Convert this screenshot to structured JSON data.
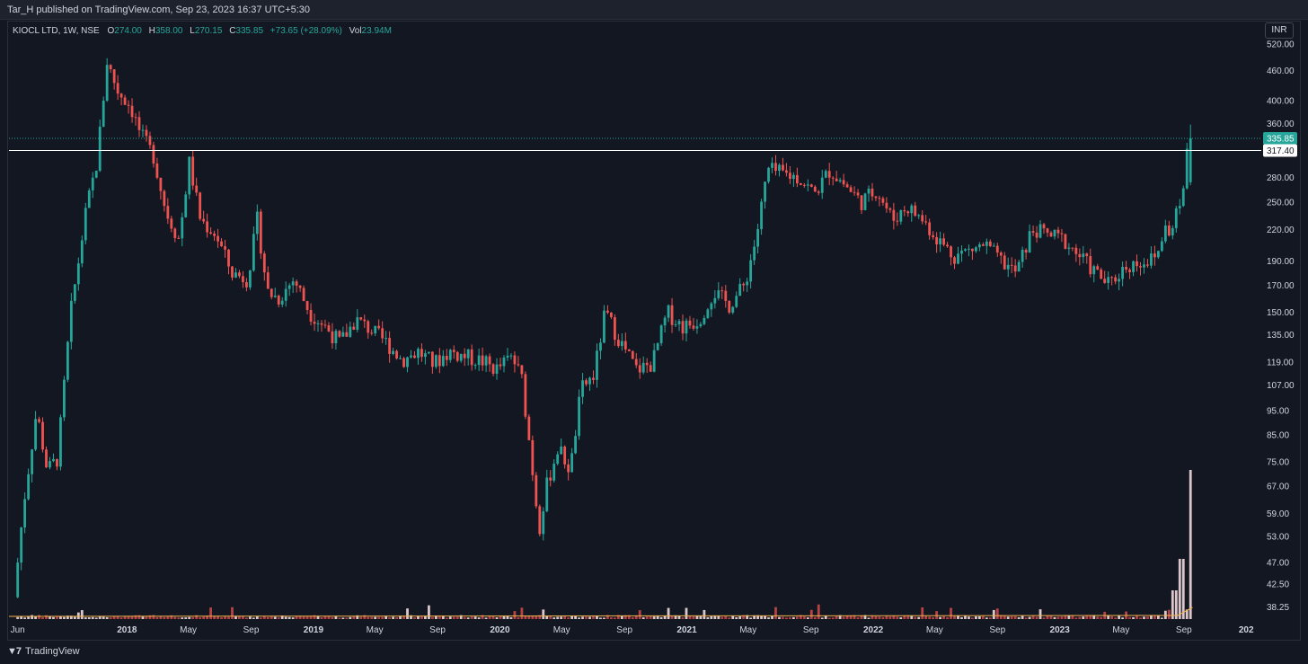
{
  "header": {
    "published_text": "Tar_H published on TradingView.com, Sep 23, 2023 16:37 UTC+5:30"
  },
  "legend": {
    "symbol": "KIOCL LTD, 1W, NSE",
    "open_label": "O",
    "open": "274.00",
    "high_label": "H",
    "high": "358.00",
    "low_label": "L",
    "low": "270.15",
    "close_label": "C",
    "close": "335.85",
    "change": "+73.65 (+28.09%)",
    "volume_label": "Vol",
    "volume": "23.94M"
  },
  "currency_button": "INR",
  "footer": {
    "brand": "TradingView",
    "logo_icon": "tradingview-logo-icon"
  },
  "colors": {
    "background": "#131722",
    "up": "#26a69a",
    "down": "#ef5350",
    "axis_text": "#d1d4dc",
    "last_price_badge": "#26a69a",
    "level_badge": "#ffffff"
  },
  "chart_data": {
    "type": "candlestick",
    "title": "",
    "scale": "log",
    "grid": false,
    "price_axis_ticks": [
      38.25,
      42.5,
      47,
      53,
      59,
      67,
      75,
      85,
      95,
      107,
      119,
      135,
      150,
      170,
      190,
      220,
      250,
      280,
      360,
      400,
      460,
      520
    ],
    "price_axis_labels": [
      "38.25",
      "42.50",
      "47.00",
      "53.00",
      "59.00",
      "67.00",
      "75.00",
      "85.00",
      "95.00",
      "107.00",
      "119.00",
      "135.00",
      "150.00",
      "170.00",
      "190.00",
      "220.00",
      "250.00",
      "280.00",
      "360.00",
      "400.00",
      "460.00",
      "520.00"
    ],
    "time_axis_labels": [
      "Jun",
      "2018",
      "May",
      "Sep",
      "2019",
      "May",
      "Sep",
      "2020",
      "May",
      "Sep",
      "2021",
      "May",
      "Sep",
      "2022",
      "May",
      "Sep",
      "2023",
      "May",
      "Sep",
      "202"
    ],
    "time_axis_bold": [
      "2018",
      "2019",
      "2020",
      "2021",
      "2022",
      "2023",
      "202"
    ],
    "last_price": {
      "value": 335.85,
      "label": "335.85"
    },
    "horizontal_level": {
      "value": 317.4,
      "label": "317.40"
    },
    "price_path": [
      [
        "2017-06-01",
        40
      ],
      [
        "2017-06-20",
        62
      ],
      [
        "2017-07-15",
        95
      ],
      [
        "2017-08-05",
        72
      ],
      [
        "2017-08-25",
        76
      ],
      [
        "2017-09-20",
        150
      ],
      [
        "2017-10-20",
        240
      ],
      [
        "2017-11-10",
        300
      ],
      [
        "2017-11-30",
        480
      ],
      [
        "2017-12-20",
        420
      ],
      [
        "2018-01-15",
        390
      ],
      [
        "2018-02-05",
        340
      ],
      [
        "2018-03-01",
        310
      ],
      [
        "2018-03-25",
        240
      ],
      [
        "2018-04-20",
        210
      ],
      [
        "2018-05-10",
        300
      ],
      [
        "2018-06-01",
        230
      ],
      [
        "2018-07-01",
        215
      ],
      [
        "2018-08-01",
        180
      ],
      [
        "2018-09-01",
        175
      ],
      [
        "2018-09-20",
        230
      ],
      [
        "2018-10-10",
        165
      ],
      [
        "2018-11-01",
        160
      ],
      [
        "2018-12-01",
        175
      ],
      [
        "2019-01-01",
        150
      ],
      [
        "2019-02-01",
        140
      ],
      [
        "2019-03-01",
        130
      ],
      [
        "2019-04-01",
        145
      ],
      [
        "2019-05-01",
        138
      ],
      [
        "2019-06-01",
        130
      ],
      [
        "2019-07-01",
        120
      ],
      [
        "2019-08-01",
        125
      ],
      [
        "2019-09-01",
        118
      ],
      [
        "2019-10-01",
        125
      ],
      [
        "2019-11-01",
        122
      ],
      [
        "2019-12-01",
        120
      ],
      [
        "2020-01-01",
        115
      ],
      [
        "2020-02-01",
        122
      ],
      [
        "2020-02-20",
        110
      ],
      [
        "2020-03-10",
        75
      ],
      [
        "2020-03-25",
        55
      ],
      [
        "2020-04-10",
        68
      ],
      [
        "2020-05-01",
        80
      ],
      [
        "2020-05-25",
        72
      ],
      [
        "2020-06-15",
        105
      ],
      [
        "2020-07-10",
        112
      ],
      [
        "2020-08-01",
        150
      ],
      [
        "2020-09-01",
        130
      ],
      [
        "2020-10-01",
        115
      ],
      [
        "2020-11-01",
        118
      ],
      [
        "2020-12-01",
        150
      ],
      [
        "2021-01-01",
        140
      ],
      [
        "2021-02-01",
        145
      ],
      [
        "2021-03-01",
        165
      ],
      [
        "2021-04-01",
        155
      ],
      [
        "2021-05-01",
        170
      ],
      [
        "2021-05-25",
        215
      ],
      [
        "2021-06-15",
        290
      ],
      [
        "2021-07-15",
        285
      ],
      [
        "2021-08-15",
        280
      ],
      [
        "2021-09-15",
        260
      ],
      [
        "2021-10-15",
        290
      ],
      [
        "2021-11-15",
        270
      ],
      [
        "2021-12-15",
        250
      ],
      [
        "2022-01-15",
        265
      ],
      [
        "2022-02-15",
        230
      ],
      [
        "2022-03-15",
        245
      ],
      [
        "2022-04-15",
        230
      ],
      [
        "2022-05-15",
        210
      ],
      [
        "2022-06-15",
        195
      ],
      [
        "2022-07-15",
        200
      ],
      [
        "2022-08-15",
        205
      ],
      [
        "2022-09-15",
        190
      ],
      [
        "2022-10-15",
        180
      ],
      [
        "2022-11-15",
        220
      ],
      [
        "2022-12-15",
        215
      ],
      [
        "2023-01-15",
        210
      ],
      [
        "2023-02-15",
        195
      ],
      [
        "2023-03-15",
        182
      ],
      [
        "2023-04-15",
        170
      ],
      [
        "2023-05-15",
        185
      ],
      [
        "2023-06-15",
        190
      ],
      [
        "2023-07-15",
        192
      ],
      [
        "2023-08-01",
        220
      ],
      [
        "2023-08-20",
        225
      ],
      [
        "2023-09-05",
        262
      ],
      [
        "2023-09-18",
        335.85
      ]
    ]
  }
}
